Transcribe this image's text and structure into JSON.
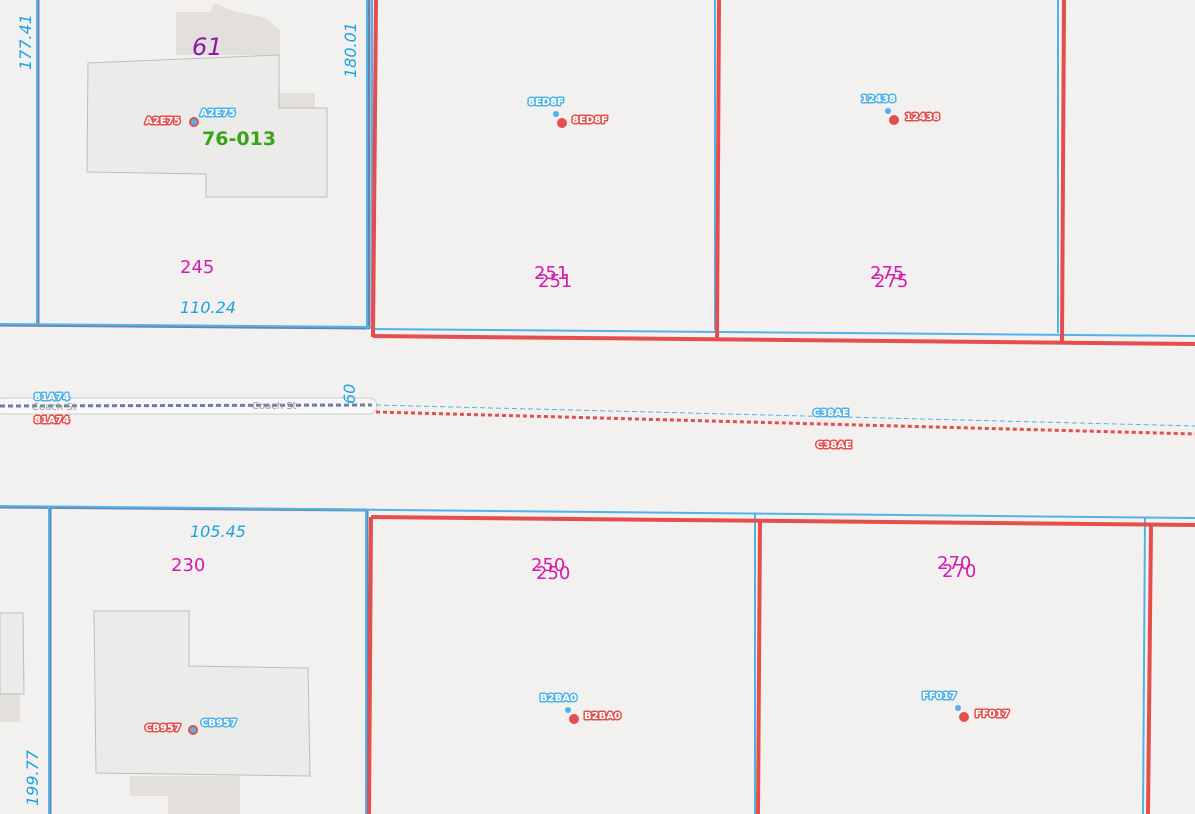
{
  "map": {
    "colors": {
      "background": "#f2f1ef",
      "building": "#ebebea",
      "building_stroke": "#bdbdbd",
      "ground_patch": "#e3dfda",
      "parcel_blue": "#4fb3ea",
      "parcel_red": "#e54e4e",
      "old_parcel": "#6f7fa8",
      "address_text": "#d41cb0",
      "dimension_text": "#1aa3df",
      "parcel_id_text": "#3aa317",
      "block_label_text": "#8a17b0"
    },
    "block_label": "61",
    "parcel_id_label": "76-013",
    "street_name": "Coach St",
    "street_name_left": "Coach St",
    "addresses": {
      "a245": "245",
      "a251_old": "251",
      "a251_new": "251",
      "a275_old": "275",
      "a275_new": "275",
      "a230": "230",
      "a250_old": "250",
      "a250_new": "250",
      "a270_old": "270",
      "a270_new": "270"
    },
    "dimensions": {
      "d177": "177.41",
      "d180": "180.01",
      "d110": "110.24",
      "d105": "105.45",
      "d199": "199.77",
      "d60": "60"
    },
    "point_tags": {
      "a2e75_old": "A2E75",
      "a2e75_new": "A2E75",
      "e8d8f_old": "8ED8F",
      "e8d8f_new": "8ED8F",
      "n12438_old": "12438",
      "n12438_new": "12438",
      "cb957_old": "CB957",
      "cb957_new": "CB957",
      "b2ba0_old": "B2BA0",
      "b2ba0_new": "B2BA0",
      "ff017_old": "FF017",
      "ff017_new": "FF017"
    },
    "road_tags": {
      "r81a74_old": "81A74",
      "r81a74_new": "81A74",
      "c38ae_old": "C38AE",
      "c38ae_new": "C38AE"
    }
  }
}
